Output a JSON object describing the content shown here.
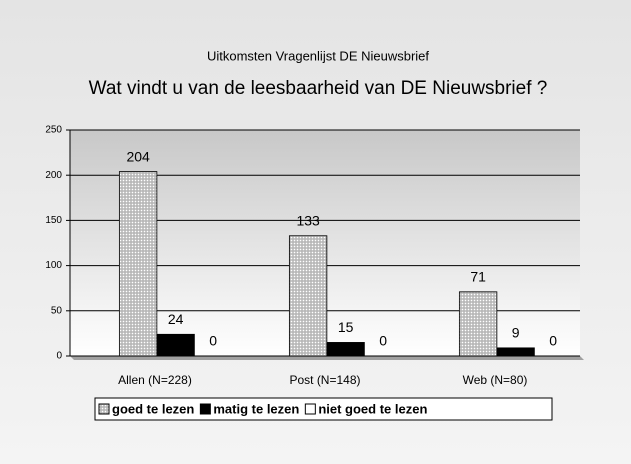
{
  "chart_data": {
    "type": "bar",
    "subtitle": "Uitkomsten Vragenlijst DE Nieuwsbrief",
    "title": "Wat vindt u van de leesbaarheid van DE Nieuwsbrief ?",
    "categories": [
      "Allen (N=228)",
      "Post (N=148)",
      "Web (N=80)"
    ],
    "series": [
      {
        "name": "goed te lezen",
        "color": "#c8c8c8",
        "values": [
          204,
          133,
          71
        ]
      },
      {
        "name": "matig te lezen",
        "color": "#000000",
        "values": [
          24,
          15,
          9
        ]
      },
      {
        "name": "niet goed te lezen",
        "color": "#ffffff",
        "values": [
          0,
          0,
          0
        ]
      }
    ],
    "ylim": [
      0,
      250
    ],
    "yticks": [
      0,
      50,
      100,
      150,
      200,
      250
    ],
    "grid": true,
    "legend": "bottom"
  }
}
